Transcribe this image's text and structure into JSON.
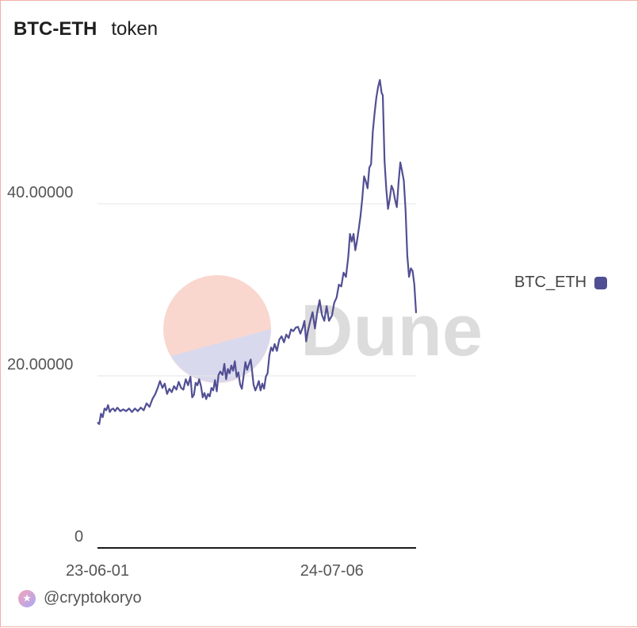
{
  "header": {
    "title": "BTC-ETH",
    "subtitle": "token"
  },
  "watermark": {
    "text": "Dune",
    "logo_colors": [
      "#f9d7cf",
      "#d9d9ee"
    ]
  },
  "footer": {
    "author": "@cryptokoryo",
    "avatar_icon": "user-avatar-icon"
  },
  "colors": {
    "series": "#514f93",
    "grid": "#e6e6e6",
    "axis": "#1a1a1a",
    "border": "#f0b2a8",
    "tick_text": "#555555"
  },
  "chart_data": {
    "type": "line",
    "title": "BTC-ETH",
    "xlabel": "",
    "ylabel": "",
    "ylim": [
      0,
      60
    ],
    "y_ticks": [
      0,
      20,
      40
    ],
    "y_tick_labels": [
      "0",
      "20.00000",
      "40.00000"
    ],
    "x_tick_labels": [
      "23-06-01",
      "24-07-06"
    ],
    "grid": true,
    "legend": "right",
    "series": [
      {
        "name": "BTC_ETH",
        "points": [
          [
            "2023-06-01",
            14.6
          ],
          [
            "2023-06-04",
            14.4
          ],
          [
            "2023-06-07",
            15.6
          ],
          [
            "2023-06-10",
            15.2
          ],
          [
            "2023-06-13",
            16.2
          ],
          [
            "2023-06-16",
            16.0
          ],
          [
            "2023-06-19",
            16.6
          ],
          [
            "2023-06-22",
            15.8
          ],
          [
            "2023-06-25",
            16.1
          ],
          [
            "2023-06-28",
            16.2
          ],
          [
            "2023-07-01",
            15.9
          ],
          [
            "2023-07-05",
            16.3
          ],
          [
            "2023-07-10",
            15.9
          ],
          [
            "2023-07-15",
            16.1
          ],
          [
            "2023-07-20",
            15.9
          ],
          [
            "2023-07-25",
            16.2
          ],
          [
            "2023-07-30",
            15.8
          ],
          [
            "2023-08-04",
            16.2
          ],
          [
            "2023-08-09",
            15.9
          ],
          [
            "2023-08-14",
            16.3
          ],
          [
            "2023-08-19",
            16.0
          ],
          [
            "2023-08-24",
            16.8
          ],
          [
            "2023-08-29",
            16.4
          ],
          [
            "2023-09-03",
            17.3
          ],
          [
            "2023-09-08",
            17.9
          ],
          [
            "2023-09-12",
            18.6
          ],
          [
            "2023-09-16",
            19.4
          ],
          [
            "2023-09-20",
            18.6
          ],
          [
            "2023-09-24",
            19.1
          ],
          [
            "2023-09-28",
            17.9
          ],
          [
            "2023-10-02",
            18.5
          ],
          [
            "2023-10-06",
            18.1
          ],
          [
            "2023-10-10",
            18.8
          ],
          [
            "2023-10-14",
            18.4
          ],
          [
            "2023-10-18",
            19.3
          ],
          [
            "2023-10-22",
            18.6
          ],
          [
            "2023-10-26",
            18.4
          ],
          [
            "2023-10-30",
            19.6
          ],
          [
            "2023-11-03",
            18.9
          ],
          [
            "2023-11-07",
            19.9
          ],
          [
            "2023-11-10",
            17.5
          ],
          [
            "2023-11-13",
            17.8
          ],
          [
            "2023-11-16",
            19.2
          ],
          [
            "2023-11-19",
            18.9
          ],
          [
            "2023-11-22",
            19.6
          ],
          [
            "2023-11-25",
            18.8
          ],
          [
            "2023-11-28",
            17.5
          ],
          [
            "2023-12-01",
            18.0
          ],
          [
            "2023-12-04",
            17.3
          ],
          [
            "2023-12-07",
            17.9
          ],
          [
            "2023-12-10",
            17.6
          ],
          [
            "2023-12-13",
            18.6
          ],
          [
            "2023-12-16",
            18.3
          ],
          [
            "2023-12-19",
            19.5
          ],
          [
            "2023-12-22",
            18.2
          ],
          [
            "2023-12-25",
            20.1
          ],
          [
            "2023-12-28",
            20.5
          ],
          [
            "2024-01-01",
            20.1
          ],
          [
            "2024-01-04",
            21.4
          ],
          [
            "2024-01-07",
            19.6
          ],
          [
            "2024-01-10",
            20.8
          ],
          [
            "2024-01-13",
            20.3
          ],
          [
            "2024-01-16",
            21.2
          ],
          [
            "2024-01-19",
            20.6
          ],
          [
            "2024-01-22",
            21.7
          ],
          [
            "2024-01-25",
            19.9
          ],
          [
            "2024-01-28",
            20.4
          ],
          [
            "2024-01-31",
            19.0
          ],
          [
            "2024-02-03",
            18.5
          ],
          [
            "2024-02-06",
            20.0
          ],
          [
            "2024-02-09",
            21.6
          ],
          [
            "2024-02-12",
            20.7
          ],
          [
            "2024-02-15",
            21.3
          ],
          [
            "2024-02-18",
            21.9
          ],
          [
            "2024-02-20",
            20.9
          ],
          [
            "2024-02-23",
            19.0
          ],
          [
            "2024-02-26",
            18.3
          ],
          [
            "2024-02-29",
            18.8
          ],
          [
            "2024-03-03",
            19.4
          ],
          [
            "2024-03-06",
            18.3
          ],
          [
            "2024-03-09",
            19.1
          ],
          [
            "2024-03-12",
            18.5
          ],
          [
            "2024-03-15",
            19.9
          ],
          [
            "2024-03-18",
            20.3
          ],
          [
            "2024-03-21",
            22.4
          ],
          [
            "2024-03-24",
            23.3
          ],
          [
            "2024-03-27",
            22.9
          ],
          [
            "2024-03-30",
            23.7
          ],
          [
            "2024-04-03",
            22.9
          ],
          [
            "2024-04-07",
            24.2
          ],
          [
            "2024-04-11",
            24.6
          ],
          [
            "2024-04-15",
            23.9
          ],
          [
            "2024-04-19",
            24.8
          ],
          [
            "2024-04-23",
            24.4
          ],
          [
            "2024-04-27",
            25.4
          ],
          [
            "2024-05-01",
            25.2
          ],
          [
            "2024-05-05",
            25.6
          ],
          [
            "2024-05-09",
            25.7
          ],
          [
            "2024-05-13",
            24.9
          ],
          [
            "2024-05-17",
            25.6
          ],
          [
            "2024-05-20",
            26.4
          ],
          [
            "2024-05-23",
            24.0
          ],
          [
            "2024-05-26",
            25.2
          ],
          [
            "2024-05-30",
            26.4
          ],
          [
            "2024-06-03",
            27.4
          ],
          [
            "2024-06-07",
            25.5
          ],
          [
            "2024-06-11",
            27.4
          ],
          [
            "2024-06-15",
            28.8
          ],
          [
            "2024-06-19",
            27.1
          ],
          [
            "2024-06-23",
            26.4
          ],
          [
            "2024-06-27",
            28.1
          ],
          [
            "2024-07-01",
            26.4
          ],
          [
            "2024-07-06",
            27.0
          ],
          [
            "2024-07-10",
            28.5
          ],
          [
            "2024-07-14",
            29.1
          ],
          [
            "2024-07-18",
            30.6
          ],
          [
            "2024-07-22",
            30.4
          ],
          [
            "2024-07-26",
            32.0
          ],
          [
            "2024-07-30",
            31.5
          ],
          [
            "2024-08-03",
            33.8
          ],
          [
            "2024-08-06",
            36.5
          ],
          [
            "2024-08-09",
            35.6
          ],
          [
            "2024-08-12",
            36.5
          ],
          [
            "2024-08-15",
            34.6
          ],
          [
            "2024-08-18",
            35.7
          ],
          [
            "2024-08-21",
            37.1
          ],
          [
            "2024-08-24",
            38.6
          ],
          [
            "2024-08-27",
            40.6
          ],
          [
            "2024-08-30",
            43.2
          ],
          [
            "2024-09-02",
            42.6
          ],
          [
            "2024-09-05",
            41.8
          ],
          [
            "2024-09-08",
            44.2
          ],
          [
            "2024-09-11",
            44.6
          ],
          [
            "2024-09-14",
            48.4
          ],
          [
            "2024-09-17",
            50.5
          ],
          [
            "2024-09-20",
            52.3
          ],
          [
            "2024-09-23",
            53.6
          ],
          [
            "2024-09-26",
            54.4
          ],
          [
            "2024-09-29",
            52.9
          ],
          [
            "2024-10-01",
            52.6
          ],
          [
            "2024-10-04",
            45.0
          ],
          [
            "2024-10-07",
            41.7
          ],
          [
            "2024-10-10",
            39.4
          ],
          [
            "2024-10-13",
            40.6
          ],
          [
            "2024-10-16",
            42.1
          ],
          [
            "2024-10-19",
            41.6
          ],
          [
            "2024-10-22",
            40.5
          ],
          [
            "2024-10-25",
            39.6
          ],
          [
            "2024-10-28",
            42.5
          ],
          [
            "2024-10-31",
            44.8
          ],
          [
            "2024-11-03",
            43.8
          ],
          [
            "2024-11-06",
            42.7
          ],
          [
            "2024-11-09",
            39.3
          ],
          [
            "2024-11-12",
            34.0
          ],
          [
            "2024-11-15",
            31.5
          ],
          [
            "2024-11-18",
            32.5
          ],
          [
            "2024-11-21",
            32.2
          ],
          [
            "2024-11-24",
            30.6
          ],
          [
            "2024-11-27",
            27.3
          ]
        ]
      }
    ]
  }
}
